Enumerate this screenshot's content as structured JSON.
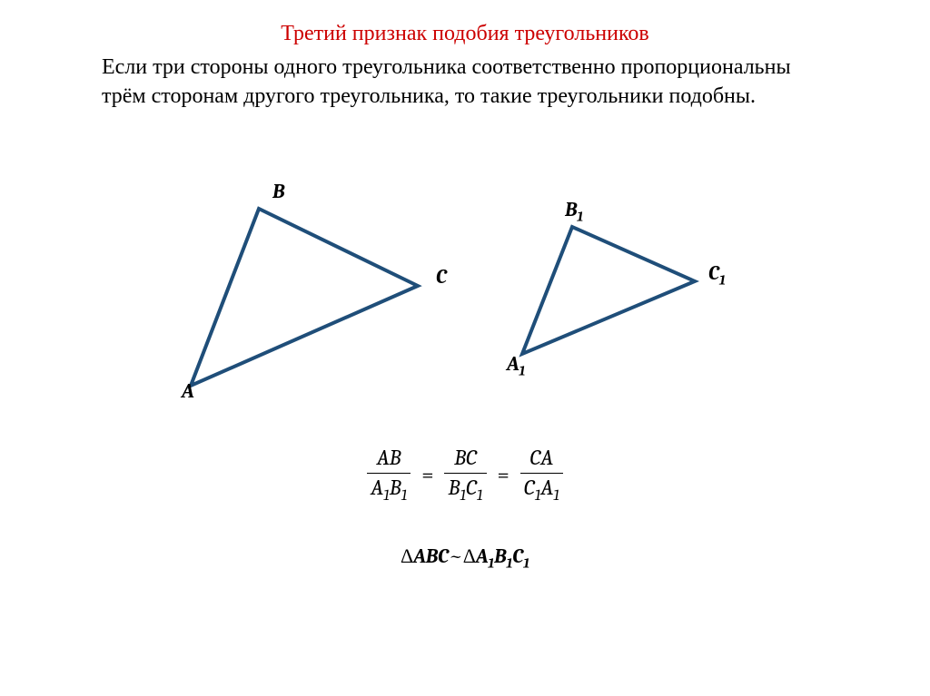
{
  "title": "Третий признак подобия треугольников",
  "body": "Если три стороны одного треугольника соответственно пропорциональны трём сторонам другого треугольника, то такие треугольники подобны.",
  "colors": {
    "title": "#cc0000",
    "body_text": "#000000",
    "triangle_stroke": "#1f4e79",
    "background": "#ffffff"
  },
  "typography": {
    "title_fontsize": 24,
    "body_fontsize": 24,
    "label_fontsize": 22,
    "formula_fontsize": 24,
    "sim_fontsize": 22
  },
  "triangles": {
    "stroke_width": 4,
    "large": {
      "A": [
        30,
        225
      ],
      "B": [
        105,
        30
      ],
      "C": [
        280,
        115
      ],
      "label_A": "A",
      "label_B": "B",
      "label_C": "C"
    },
    "small": {
      "A1": [
        395,
        190
      ],
      "B1": [
        450,
        50
      ],
      "C1": [
        585,
        110
      ],
      "label_A1": "A₁",
      "label_B1": "B₁",
      "label_C1": "C₁"
    }
  },
  "formula": {
    "frac1": {
      "num": "AB",
      "den": "A₁B₁"
    },
    "frac2": {
      "num": "BC",
      "den": "B₁C₁"
    },
    "frac3": {
      "num": "CA",
      "den": "C₁A₁"
    },
    "eq": "="
  },
  "similarity": {
    "delta": "Δ",
    "left": "ABC",
    "tilde": "~",
    "right": "A₁B₁C₁"
  }
}
